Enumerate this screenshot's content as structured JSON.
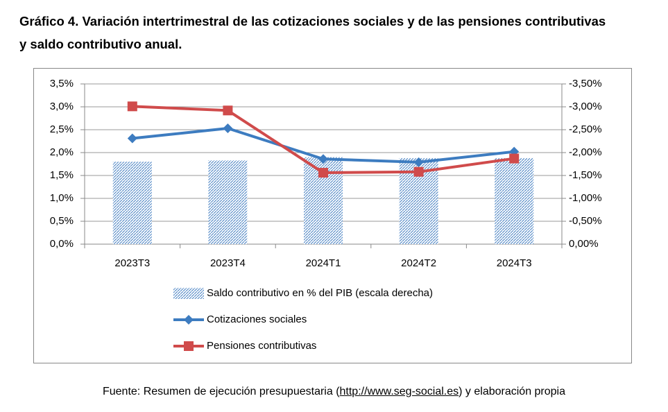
{
  "chart_data": {
    "type": "bar-line",
    "title": [
      "Gráfico 4. Variación intertrimestral de las cotizaciones sociales y de las pensiones contributivas",
      "y saldo contributivo anual."
    ],
    "categories": [
      "2023T3",
      "2023T4",
      "2024T1",
      "2024T2",
      "2024T3"
    ],
    "series": [
      {
        "name": "Saldo contributivo en % del PIB (escala derecha)",
        "type": "bar",
        "axis": "y2",
        "color": "#5b8fc9",
        "values": [
          -1.8,
          -1.83,
          -1.9,
          -1.88,
          -1.88
        ]
      },
      {
        "name": "Cotizaciones sociales",
        "type": "line",
        "marker": "diamond",
        "color": "#3d7cc0",
        "values": [
          2.31,
          2.53,
          1.86,
          1.79,
          2.02
        ]
      },
      {
        "name": "Pensiones contributivas",
        "type": "line",
        "marker": "square",
        "color": "#d04b4b",
        "values": [
          3.01,
          2.92,
          1.56,
          1.58,
          1.87
        ]
      }
    ],
    "ylim": [
      0,
      3.5
    ],
    "yticks": [
      {
        "value": 0,
        "label": "0,0%"
      },
      {
        "value": 0.5,
        "label": "0,5%"
      },
      {
        "value": 1,
        "label": "1,0%"
      },
      {
        "value": 1.5,
        "label": "1,5%"
      },
      {
        "value": 2,
        "label": "2,0%"
      },
      {
        "value": 2.5,
        "label": "2,5%"
      },
      {
        "value": 3,
        "label": "3,0%"
      },
      {
        "value": 3.5,
        "label": "3,5%"
      }
    ],
    "y2lim": [
      0,
      -3.5
    ],
    "y2ticks": [
      {
        "value": 0,
        "label": "0,00%"
      },
      {
        "value": -0.5,
        "label": "-0,50%"
      },
      {
        "value": -1,
        "label": "-1,00%"
      },
      {
        "value": -1.5,
        "label": "-1,50%"
      },
      {
        "value": -2,
        "label": "-2,00%"
      },
      {
        "value": -2.5,
        "label": "-2,50%"
      },
      {
        "value": -3,
        "label": "-3,00%"
      },
      {
        "value": -3.5,
        "label": "-3,50%"
      }
    ],
    "grid": true,
    "legend": "bottom"
  },
  "source": {
    "prefix": "Fuente: Resumen de ejecución presupuestaria (",
    "link": "http://www.seg-social.es",
    "suffix": ") y elaboración propia"
  }
}
